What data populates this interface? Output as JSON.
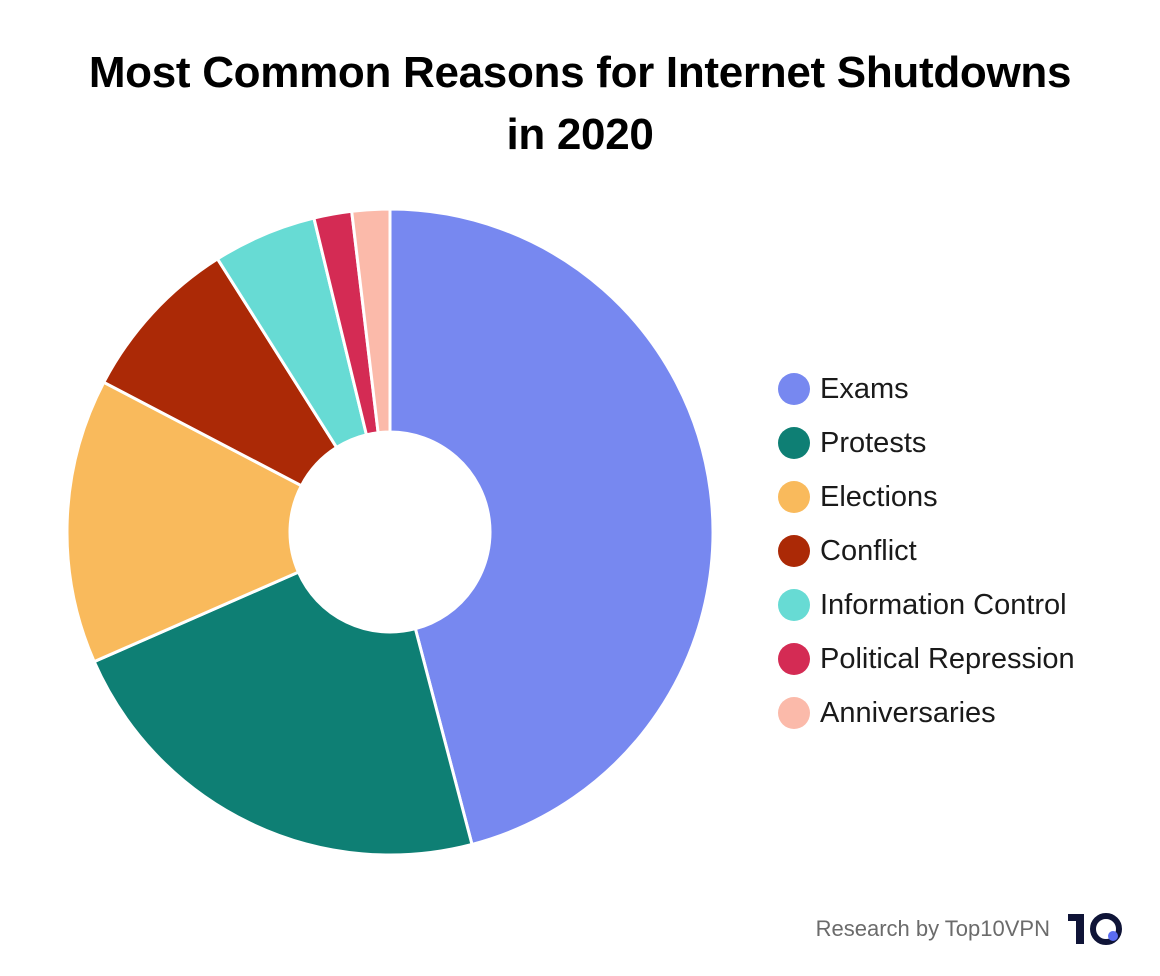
{
  "chart_data": {
    "type": "pie",
    "variant": "donut",
    "title_lines": [
      "Most Common Reasons for Internet Shutdowns",
      "in 2020"
    ],
    "categories": [
      "Exams",
      "Protests",
      "Elections",
      "Conflict",
      "Information Control",
      "Political Repression",
      "Anniversaries"
    ],
    "values": [
      46.1,
      22.6,
      14.3,
      8.4,
      5.2,
      1.9,
      1.9
    ],
    "colors": [
      "#7788f0",
      "#0e7f74",
      "#f9ba5c",
      "#ab2906",
      "#67dbd4",
      "#d42b54",
      "#fbbaaa"
    ],
    "start_angle_deg": 0,
    "direction": "clockwise",
    "legend_position": "right"
  },
  "footer": {
    "credit": "Research by Top10VPN",
    "logo_text": "10"
  }
}
